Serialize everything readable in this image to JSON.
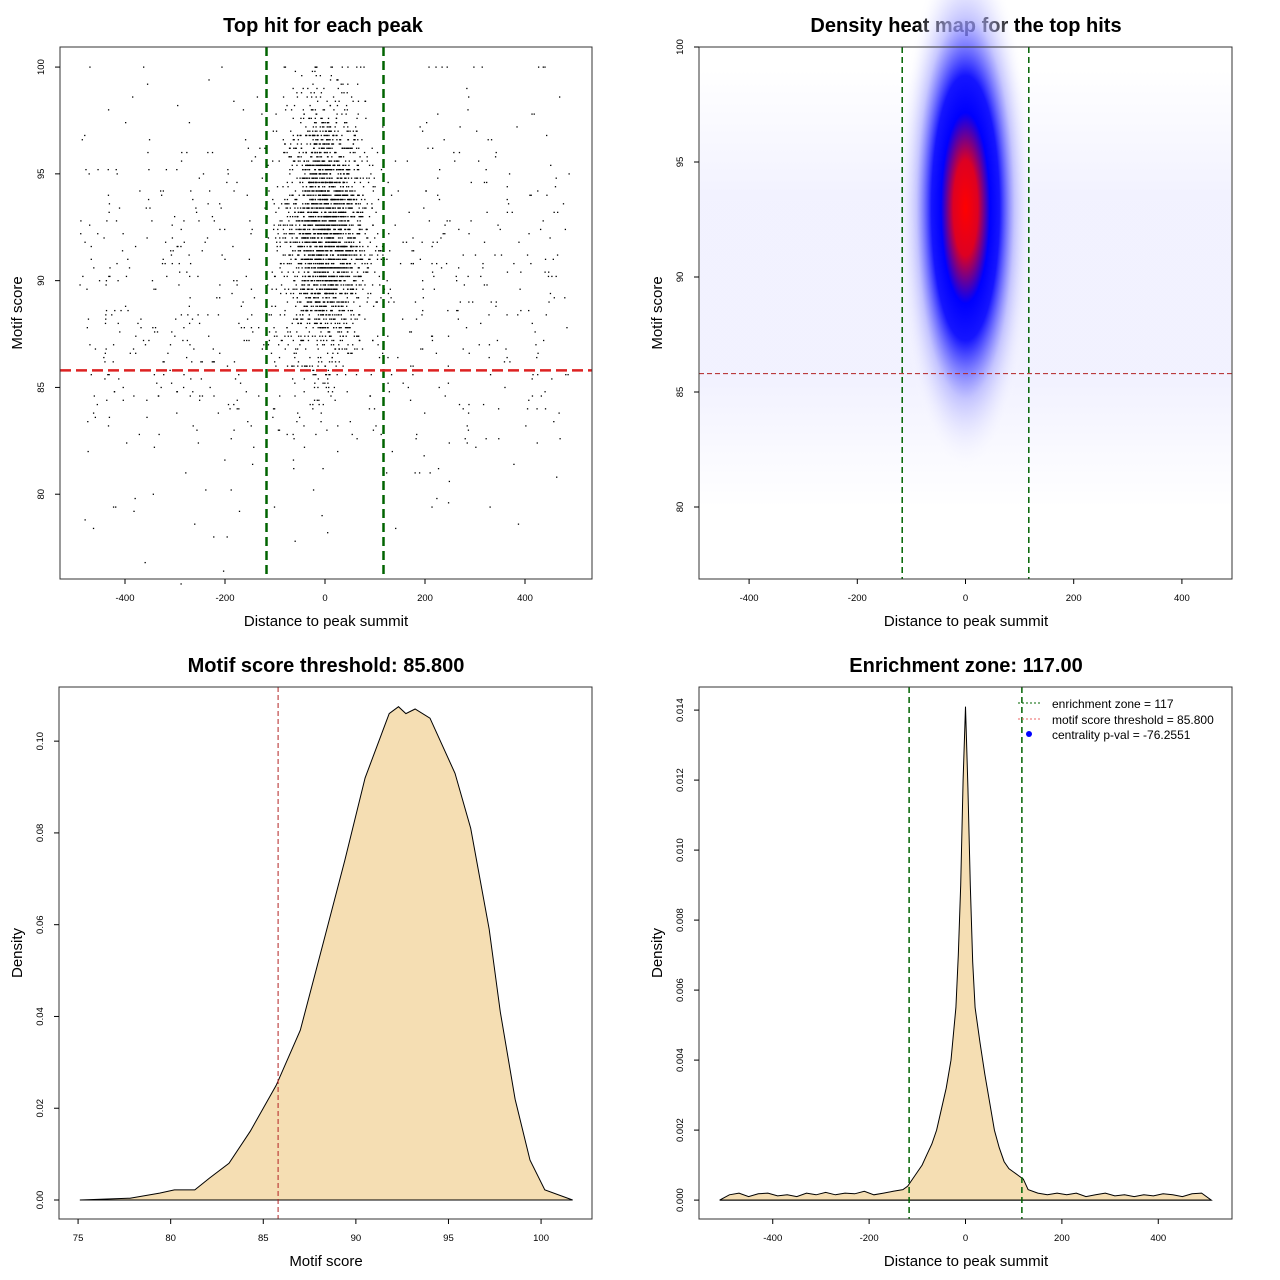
{
  "colors": {
    "threshold_red": "#dd2222",
    "zone_green": "#006400",
    "fill": "#F5DEB3",
    "heat_low": "#ffffff",
    "heat_mid": "#0000ff",
    "heat_high": "#ff0000",
    "legend_dot": "#0000ff"
  },
  "chart_data": [
    {
      "type": "scatter",
      "title": "Top hit for each peak",
      "xlabel": "Distance to peak summit",
      "ylabel": "Motif score",
      "xlim": [
        -530,
        534
      ],
      "ylim": [
        76.03,
        100.94
      ],
      "xticks": [
        -400,
        -200,
        0,
        200,
        400
      ],
      "yticks": [
        80,
        85,
        90,
        95,
        100
      ],
      "vlines": [
        -117,
        117
      ],
      "hline": 85.8,
      "points_generated": {
        "central": {
          "n": 2600,
          "x_mean": 0,
          "x_sd": 40,
          "y_mean": 92.3,
          "y_sd": 3.0
        },
        "background": {
          "n": 750,
          "x_range": [
            -490,
            490
          ],
          "y_mean": 89.5,
          "y_sd": 4.8
        },
        "y_range": [
          77,
          100
        ]
      }
    },
    {
      "type": "heatmap",
      "title": "Density heat map for the top hits",
      "xlabel": "Distance to peak summit",
      "ylabel": "Motif score",
      "xlim": [
        -492.6,
        492.6
      ],
      "ylim": [
        76.87,
        100
      ],
      "xticks": [
        -400,
        -200,
        0,
        200,
        400
      ],
      "yticks": [
        80,
        85,
        90,
        95,
        100
      ],
      "vlines": [
        -117,
        117
      ],
      "hline": 85.8,
      "density_peak": {
        "x": 0,
        "y": 93.0
      }
    },
    {
      "type": "area",
      "title": "Motif score threshold: 85.800",
      "xlabel": "Motif score",
      "ylabel": "Density",
      "xlim": [
        73.97,
        102.75
      ],
      "ylim": [
        -0.00414,
        0.1118
      ],
      "xticks": [
        75,
        80,
        85,
        90,
        95,
        100
      ],
      "yticks": [
        0,
        0.02,
        0.04,
        0.06,
        0.08,
        0.1
      ],
      "ytick_labels": [
        "0.00",
        "0.02",
        "0.04",
        "0.06",
        "0.08",
        "0.10"
      ],
      "vline": 85.8,
      "x": [
        75.1,
        77.8,
        79.4,
        80.2,
        81.3,
        82.1,
        83.15,
        84.3,
        85.7,
        87.0,
        88.3,
        89.4,
        90.5,
        91.8,
        92.3,
        92.7,
        93.2,
        94.0,
        95.35,
        96.2,
        97.2,
        97.8,
        98.6,
        99.4,
        100.2,
        101.7
      ],
      "y": [
        0,
        0.0004,
        0.0015,
        0.0022,
        0.0022,
        0.0048,
        0.008,
        0.015,
        0.025,
        0.037,
        0.057,
        0.074,
        0.092,
        0.106,
        0.1075,
        0.106,
        0.107,
        0.105,
        0.093,
        0.081,
        0.059,
        0.041,
        0.022,
        0.0087,
        0.0022,
        0
      ]
    },
    {
      "type": "area",
      "title": "Enrichment zone: 117.00",
      "xlabel": "Distance to peak summit",
      "ylabel": "Density",
      "xlim": [
        -553,
        553
      ],
      "ylim": [
        -0.00054,
        0.01466
      ],
      "xticks": [
        -400,
        -200,
        0,
        200,
        400
      ],
      "yticks": [
        0,
        0.002,
        0.004,
        0.006,
        0.008,
        0.01,
        0.012,
        0.014
      ],
      "ytick_labels": [
        "0.000",
        "0.002",
        "0.004",
        "0.006",
        "0.008",
        "0.010",
        "0.012",
        "0.014"
      ],
      "vlines": [
        -117,
        117
      ],
      "legend": {
        "position": "top-right",
        "entries": [
          "enrichment zone = 117",
          "motif score threshold = 85.800",
          "centrality p-val = -76.2551"
        ]
      },
      "x": [
        -510,
        -490,
        -470,
        -450,
        -430,
        -410,
        -390,
        -370,
        -350,
        -330,
        -310,
        -290,
        -270,
        -250,
        -230,
        -210,
        -190,
        -170,
        -150,
        -130,
        -120,
        -110,
        -100,
        -90,
        -80,
        -70,
        -60,
        -50,
        -40,
        -30,
        -20,
        -15,
        -10,
        -5,
        0,
        5,
        10,
        15,
        20,
        30,
        40,
        50,
        60,
        70,
        80,
        90,
        100,
        110,
        120,
        130,
        150,
        170,
        190,
        210,
        230,
        250,
        270,
        290,
        310,
        330,
        350,
        370,
        390,
        410,
        430,
        450,
        470,
        490,
        510
      ],
      "y": [
        0,
        0.00015,
        0.0002,
        0.0001,
        0.00018,
        0.0002,
        0.00012,
        0.00015,
        0.0001,
        0.0002,
        0.00015,
        0.00022,
        0.00015,
        0.0002,
        0.00018,
        0.00025,
        0.00015,
        0.0002,
        0.00025,
        0.0003,
        0.0004,
        0.0006,
        0.0008,
        0.001,
        0.0013,
        0.0016,
        0.002,
        0.0026,
        0.0032,
        0.004,
        0.0055,
        0.007,
        0.009,
        0.012,
        0.0141,
        0.0118,
        0.009,
        0.0068,
        0.0055,
        0.0045,
        0.0036,
        0.0028,
        0.002,
        0.0015,
        0.0011,
        0.0009,
        0.0008,
        0.0007,
        0.0006,
        0.0003,
        0.0002,
        0.00015,
        0.0002,
        0.00015,
        0.0002,
        0.0001,
        0.00015,
        0.0002,
        0.00012,
        0.00015,
        0.0001,
        0.00015,
        0.00012,
        0.00018,
        0.00015,
        0.0001,
        0.00018,
        0.0002,
        0
      ]
    }
  ]
}
